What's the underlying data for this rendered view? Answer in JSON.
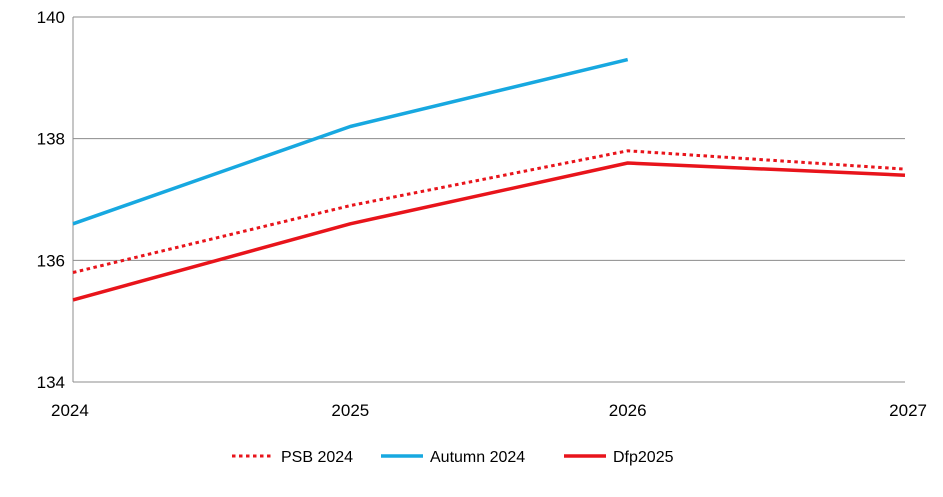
{
  "chart_data": {
    "type": "line",
    "x": [
      "2024",
      "2025",
      "2026",
      "2027"
    ],
    "ylim": [
      134,
      140
    ],
    "yticks": [
      134,
      136,
      138,
      140
    ],
    "grid": "horizontal",
    "legend_position": "bottom",
    "series": [
      {
        "name": "PSB 2024",
        "color": "#e8141b",
        "style": "dotted",
        "values": [
          135.8,
          136.9,
          137.8,
          137.5
        ]
      },
      {
        "name": "Autumn 2024",
        "color": "#17a8e0",
        "style": "solid",
        "values": [
          136.6,
          138.2,
          139.3,
          null
        ]
      },
      {
        "name": "Dfp2025",
        "color": "#e8141b",
        "style": "solid",
        "values": [
          135.35,
          136.6,
          137.6,
          137.4
        ]
      }
    ]
  }
}
